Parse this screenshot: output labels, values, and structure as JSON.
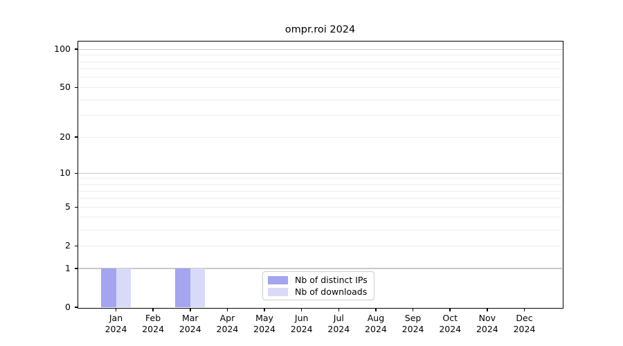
{
  "chart_data": {
    "type": "bar",
    "title": "ompr.roi 2024",
    "categories": [
      {
        "month": "Jan",
        "year": "2024"
      },
      {
        "month": "Feb",
        "year": "2024"
      },
      {
        "month": "Mar",
        "year": "2024"
      },
      {
        "month": "Apr",
        "year": "2024"
      },
      {
        "month": "May",
        "year": "2024"
      },
      {
        "month": "Jun",
        "year": "2024"
      },
      {
        "month": "Jul",
        "year": "2024"
      },
      {
        "month": "Aug",
        "year": "2024"
      },
      {
        "month": "Sep",
        "year": "2024"
      },
      {
        "month": "Oct",
        "year": "2024"
      },
      {
        "month": "Nov",
        "year": "2024"
      },
      {
        "month": "Dec",
        "year": "2024"
      }
    ],
    "series": [
      {
        "name": "Nb of distinct IPs",
        "color": "#a4a4f1",
        "values": [
          1,
          0,
          1,
          0,
          0,
          0,
          0,
          0,
          0,
          0,
          0,
          0
        ]
      },
      {
        "name": "Nb of downloads",
        "color": "#d9d9f8",
        "values": [
          1,
          0,
          1,
          0,
          0,
          0,
          0,
          0,
          0,
          0,
          0,
          0
        ]
      }
    ],
    "yscale": "log1p",
    "ylim": [
      0,
      115
    ],
    "y_tick_values": [
      0,
      1,
      2,
      5,
      10,
      20,
      50,
      100
    ],
    "grid_major_values": [
      1,
      10,
      100
    ],
    "grid_minor_values": [
      2,
      3,
      4,
      5,
      6,
      7,
      8,
      9,
      20,
      30,
      40,
      50,
      60,
      70,
      80,
      90
    ],
    "grid": "horizontal",
    "xlabel": "",
    "ylabel": "",
    "legend_position": "lower-center-inside",
    "colors": {
      "grid_major": "#c8c8c8",
      "grid_minor": "#ededed",
      "spine": "#000000",
      "background": "#ffffff"
    }
  }
}
